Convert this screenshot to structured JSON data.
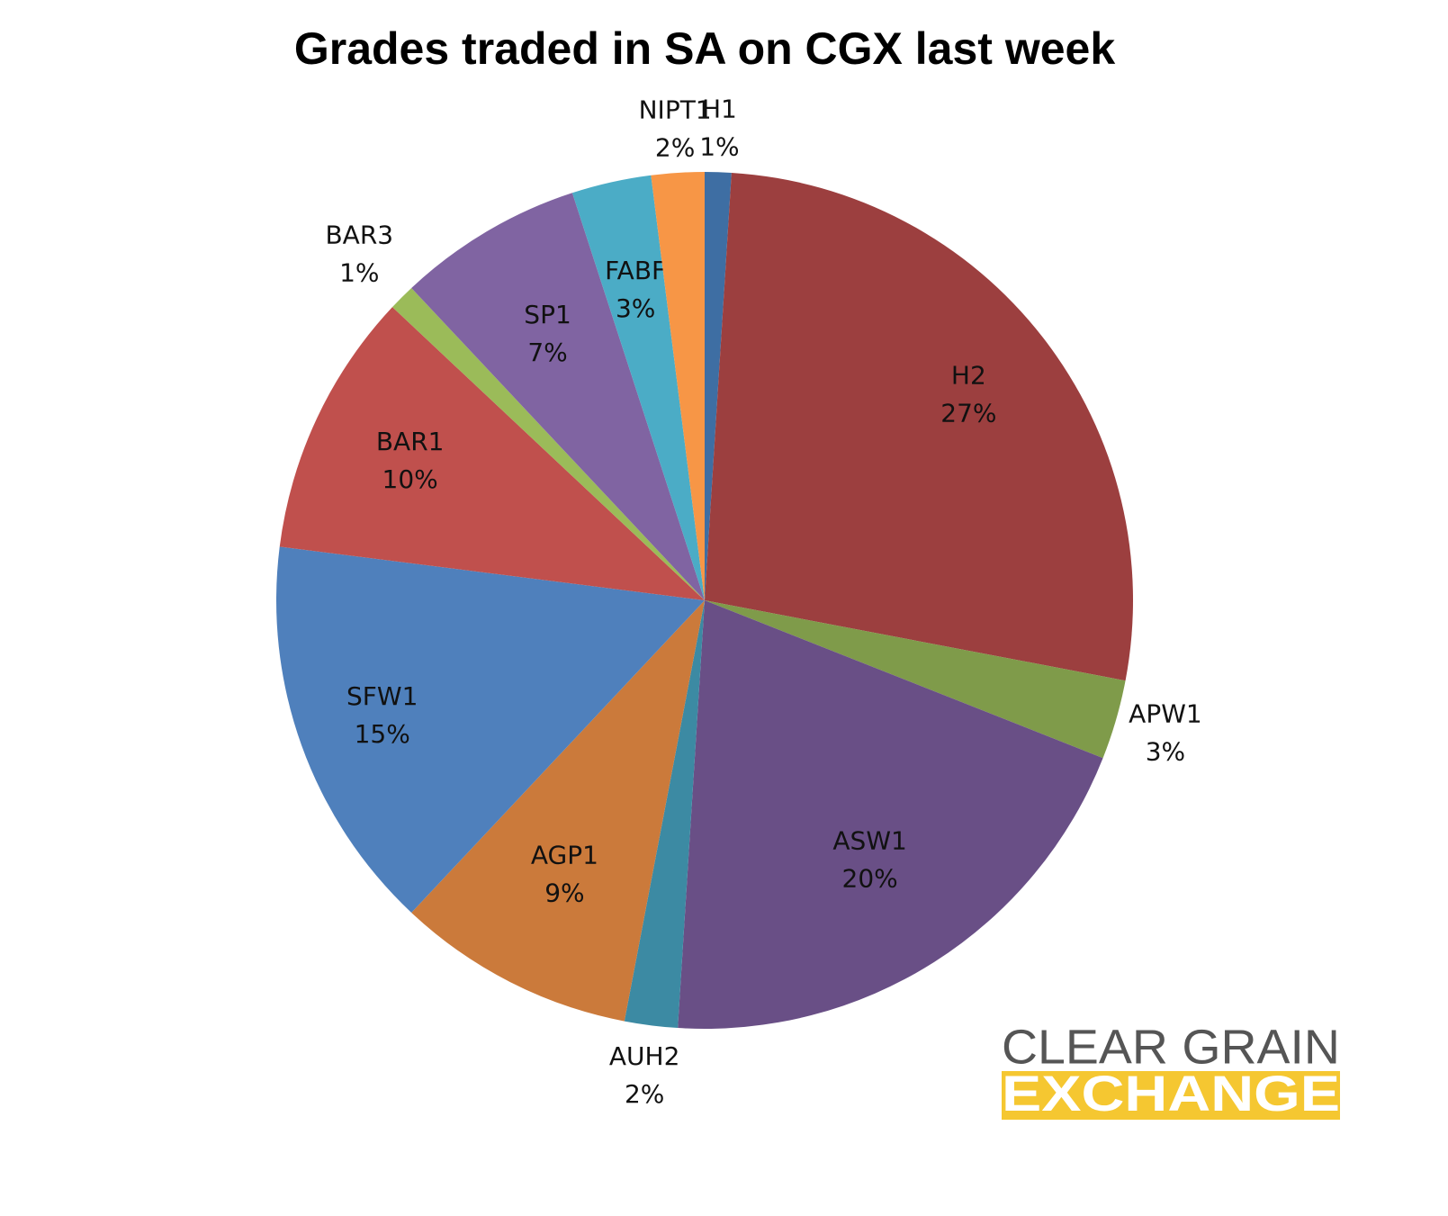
{
  "chart_data": {
    "type": "pie",
    "title": "Grades traded in SA on CGX last week",
    "categories": [
      "H1",
      "H2",
      "APW1",
      "ASW1",
      "AUH2",
      "AGP1",
      "SFW1",
      "BAR1",
      "BAR3",
      "SP1",
      "FABF",
      "NIPT1"
    ],
    "values": [
      1,
      27,
      3,
      20,
      2,
      9,
      15,
      10,
      1,
      7,
      3,
      2
    ],
    "value_labels": [
      "1%",
      "27%",
      "3%",
      "20%",
      "2%",
      "9%",
      "15%",
      "10%",
      "1%",
      "7%",
      "3%",
      "2%"
    ],
    "colors": [
      "#3e6ea3",
      "#9c3f3f",
      "#7f9b4a",
      "#694f86",
      "#3c8aa3",
      "#cb7a3b",
      "#4f80bc",
      "#c0504d",
      "#9bbb59",
      "#8064a2",
      "#4bacc6",
      "#f79646"
    ]
  },
  "logo": {
    "line1": "CLEAR GRAIN",
    "line2": "EXCHANGE"
  }
}
